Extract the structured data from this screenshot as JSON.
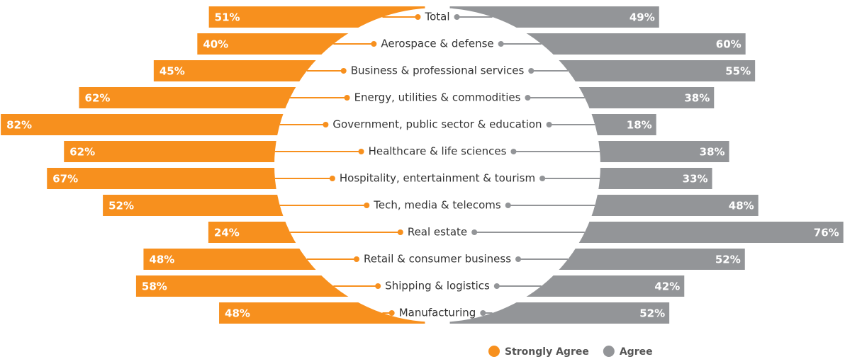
{
  "chart_data": {
    "type": "diverging-bar",
    "categories": [
      "Total",
      "Aerospace & defense",
      "Business & professional services",
      "Energy, utilities & commodities",
      "Government, public sector & education",
      "Healthcare & life sciences",
      "Hospitality, entertainment & tourism",
      "Tech, media & telecoms",
      "Real estate",
      "Retail & consumer business",
      "Shipping & logistics",
      "Manufacturing"
    ],
    "series": [
      {
        "name": "Strongly Agree",
        "color": "#f7901e",
        "side": "left",
        "values": [
          51,
          40,
          45,
          62,
          82,
          62,
          67,
          52,
          24,
          48,
          58,
          48
        ],
        "value_labels": [
          "51%",
          "40%",
          "45%",
          "62%",
          "82%",
          "62%",
          "67%",
          "52%",
          "24%",
          "48%",
          "58%",
          "48%"
        ]
      },
      {
        "name": "Agree",
        "color": "#939598",
        "side": "right",
        "values": [
          49,
          60,
          55,
          38,
          18,
          38,
          33,
          48,
          76,
          52,
          42,
          52
        ],
        "value_labels": [
          "49%",
          "60%",
          "55%",
          "38%",
          "18%",
          "38%",
          "33%",
          "48%",
          "76%",
          "52%",
          "42%",
          "52%"
        ]
      }
    ]
  }
}
